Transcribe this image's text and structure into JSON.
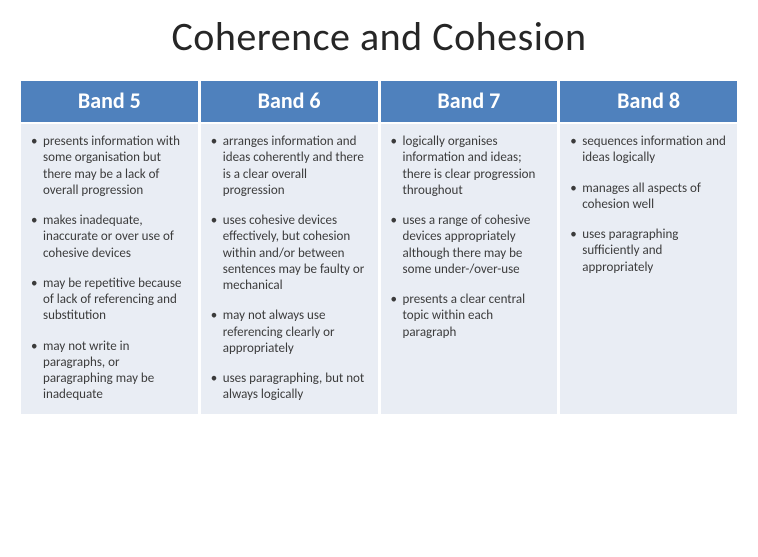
{
  "title": "Coherence and Cohesion",
  "table": {
    "type": "table",
    "header_bg": "#4f81bd",
    "header_color": "#ffffff",
    "cell_bg": "#e9edf4",
    "cell_color": "#3b3b3b",
    "title_fontsize": 40,
    "header_fontsize": 22,
    "body_fontsize": 13,
    "columns": [
      {
        "label": "Band 5"
      },
      {
        "label": "Band 6"
      },
      {
        "label": "Band 7"
      },
      {
        "label": "Band 8"
      }
    ],
    "rows": [
      {
        "cells": [
          {
            "bullets": [
              "presents information with some organisation but there may be a lack of overall progression",
              "makes inadequate, inaccurate or over use of cohesive devices",
              "may be repetitive because of lack of referencing and substitution",
              "may not write in paragraphs, or paragraphing may be inadequate"
            ]
          },
          {
            "bullets": [
              "arranges information and ideas coherently and there is a clear overall progression",
              "uses cohesive devices effectively, but cohesion within and/or between sentences may be faulty or mechanical",
              "may not always use referencing clearly or appropriately",
              "uses paragraphing, but not always logically"
            ]
          },
          {
            "bullets": [
              "logically organises information and ideas; there is clear progression throughout",
              "uses a range of cohesive devices appropriately although there may be some under-/over-use",
              "presents a clear central topic within each paragraph"
            ]
          },
          {
            "bullets": [
              "sequences information and ideas logically",
              "manages all aspects of cohesion well",
              "uses paragraphing sufficiently and appropriately"
            ]
          }
        ]
      }
    ]
  }
}
